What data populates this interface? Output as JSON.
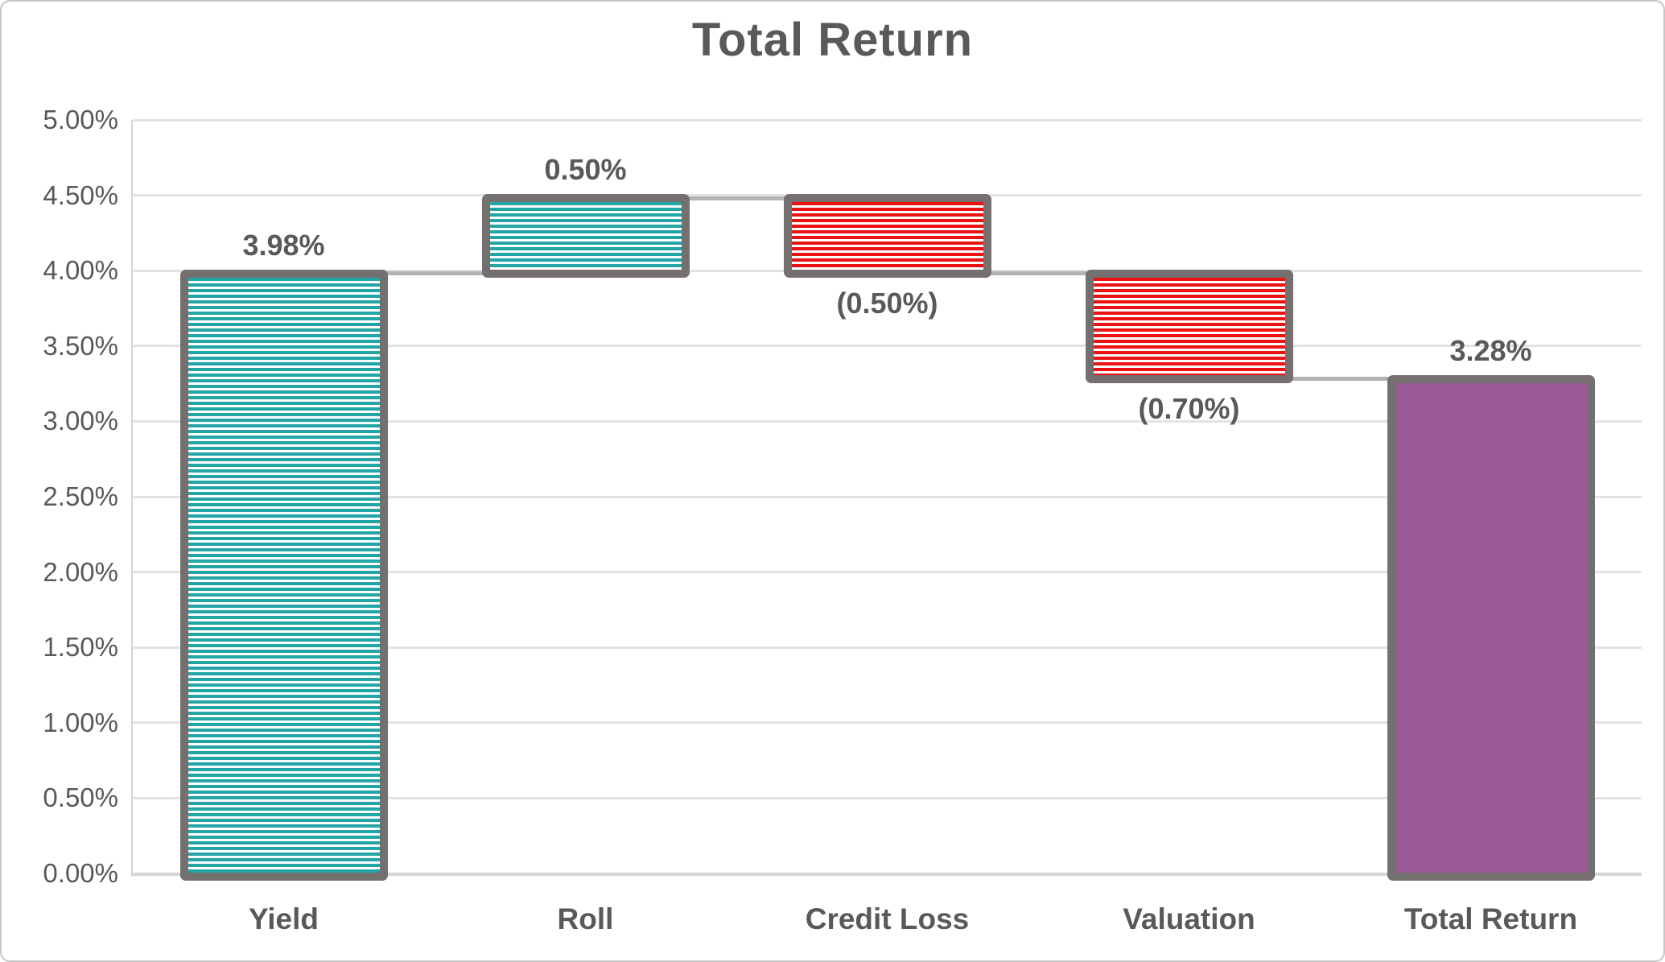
{
  "chart_data": {
    "type": "bar",
    "subtype": "waterfall",
    "title": "Total Return",
    "categories": [
      "Yield",
      "Roll",
      "Credit Loss",
      "Valuation",
      "Total Return"
    ],
    "steps": [
      {
        "category": "Yield",
        "kind": "increase",
        "start": 0,
        "end": 3.98,
        "data_label": "3.98%",
        "label_position": "above"
      },
      {
        "category": "Roll",
        "kind": "increase",
        "start": 3.98,
        "end": 4.48,
        "data_label": "0.50%",
        "label_position": "above"
      },
      {
        "category": "Credit Loss",
        "kind": "decrease",
        "start": 4.48,
        "end": 3.98,
        "data_label": "(0.50%)",
        "label_position": "below"
      },
      {
        "category": "Valuation",
        "kind": "decrease",
        "start": 3.98,
        "end": 3.28,
        "data_label": "(0.70%)",
        "label_position": "below"
      },
      {
        "category": "Total Return",
        "kind": "total",
        "start": 0,
        "end": 3.28,
        "data_label": "3.28%",
        "label_position": "above"
      }
    ],
    "connectors": [
      {
        "between": [
          "Yield",
          "Roll"
        ],
        "value": 3.98
      },
      {
        "between": [
          "Roll",
          "Credit Loss"
        ],
        "value": 4.48
      },
      {
        "between": [
          "Credit Loss",
          "Valuation"
        ],
        "value": 3.98
      },
      {
        "between": [
          "Valuation",
          "Total Return"
        ],
        "value": 3.28
      }
    ],
    "y_axis": {
      "min": 0,
      "max": 5,
      "tick_step": 0.5,
      "tick_labels": [
        "0.00%",
        "0.50%",
        "1.00%",
        "1.50%",
        "2.00%",
        "2.50%",
        "3.00%",
        "3.50%",
        "4.00%",
        "4.50%",
        "5.00%"
      ]
    },
    "grid": true,
    "legend": false,
    "colors": {
      "increase_fill": "#23A5A5",
      "decrease_fill": "#EB1212",
      "total_fill": "#995A97",
      "bar_border": "#747070",
      "text": "#595959",
      "gridline": "#E3E3E3",
      "axis_line": "#D5D5D5",
      "connector": "#B3B3B3"
    }
  }
}
